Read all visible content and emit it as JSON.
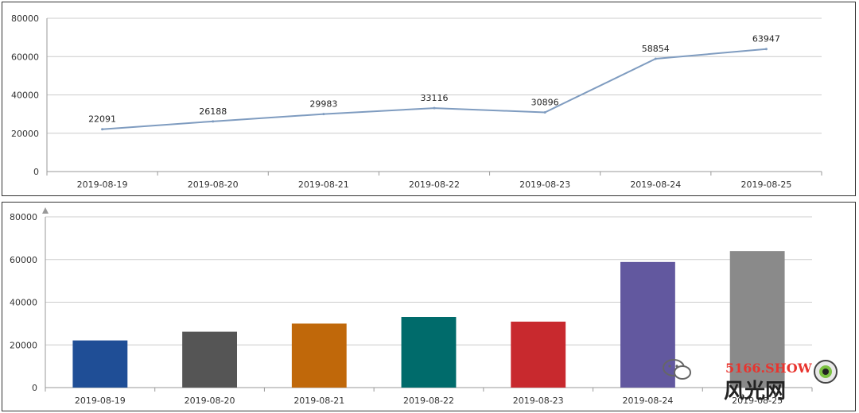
{
  "chart_data": [
    {
      "type": "line",
      "title": "",
      "xlabel": "",
      "ylabel": "",
      "categories": [
        "2019-08-19",
        "2019-08-20",
        "2019-08-21",
        "2019-08-22",
        "2019-08-23",
        "2019-08-24",
        "2019-08-25"
      ],
      "values": [
        22091,
        26188,
        29983,
        33116,
        30896,
        58854,
        63947
      ],
      "data_labels": [
        "22091",
        "26188",
        "29983",
        "33116",
        "30896",
        "58854",
        "63947"
      ],
      "ylim": [
        0,
        80000
      ],
      "yticks": [
        "0",
        "20000",
        "40000",
        "60000",
        "80000"
      ],
      "grid": true,
      "legend": "none",
      "line_color": "#7f9cc0"
    },
    {
      "type": "bar",
      "title": "",
      "xlabel": "",
      "ylabel": "",
      "categories": [
        "2019-08-19",
        "2019-08-20",
        "2019-08-21",
        "2019-08-22",
        "2019-08-23",
        "2019-08-24",
        "2019-08-25"
      ],
      "values": [
        22091,
        26188,
        29983,
        33116,
        30896,
        58854,
        63947
      ],
      "ylim": [
        0,
        80000
      ],
      "yticks": [
        "0",
        "20000",
        "40000",
        "60000",
        "80000"
      ],
      "grid": true,
      "legend": "none",
      "bar_colors": [
        "#1f4e96",
        "#555555",
        "#c0680a",
        "#006b6b",
        "#c8292e",
        "#62589f",
        "#8a8a8a"
      ]
    }
  ],
  "watermark": {
    "line1": "5166.SHOW",
    "line2": "风光网",
    "chat_icon": "wechat-icon",
    "eye_icon": "eye-logo-icon"
  }
}
